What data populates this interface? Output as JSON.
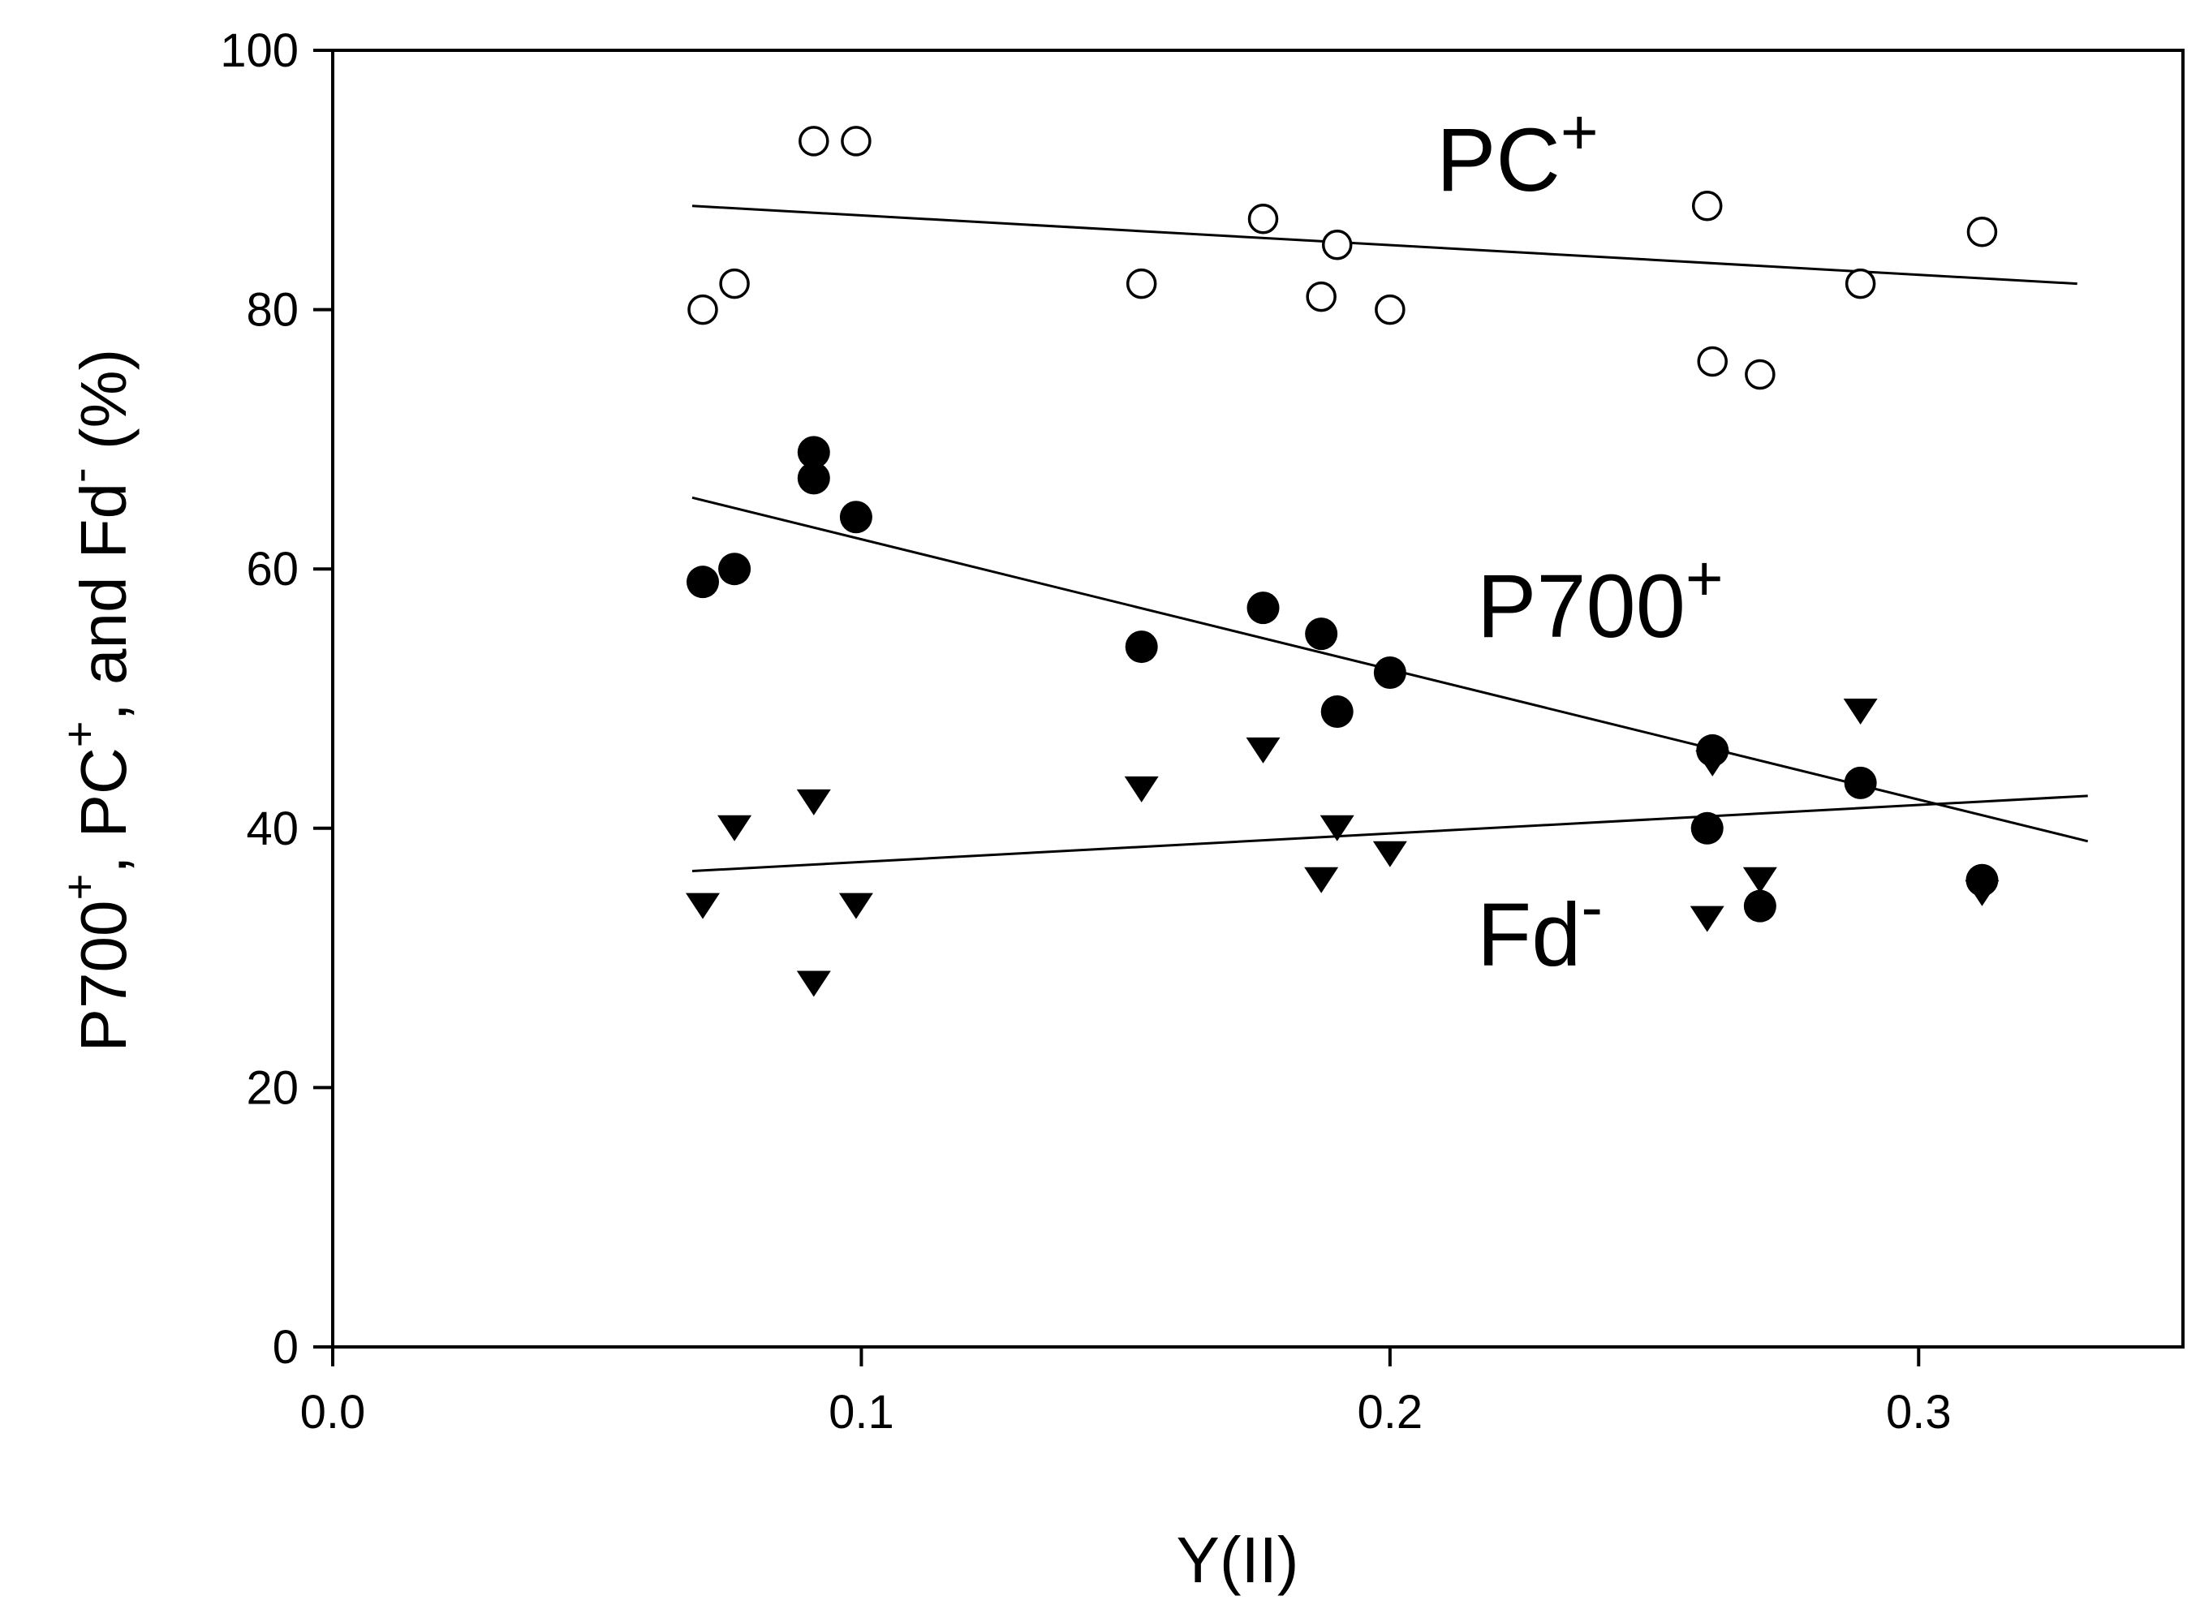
{
  "chart_data": {
    "type": "scatter",
    "title": "",
    "xlabel": "Y(II)",
    "ylabel": {
      "p700": "P700",
      "pc_pre": ", PC",
      "fd_pre": ", and Fd",
      "unit": " (%)",
      "plus": "+",
      "minus": "-"
    },
    "xlim": [
      0.0,
      0.35
    ],
    "ylim": [
      0,
      100
    ],
    "x_ticks": [
      "0.0",
      "0.1",
      "0.2",
      "0.3"
    ],
    "x_tick_values": [
      0.0,
      0.1,
      0.2,
      0.3
    ],
    "y_ticks": [
      "0",
      "20",
      "40",
      "60",
      "80",
      "100"
    ],
    "y_tick_values": [
      0,
      20,
      40,
      60,
      80,
      100
    ],
    "grid": false,
    "series": [
      {
        "name": "PC+",
        "label_text": "PC",
        "label_sup": "+",
        "marker": "open-circle",
        "color": "#000000",
        "points": [
          [
            0.07,
            80
          ],
          [
            0.076,
            82
          ],
          [
            0.091,
            93
          ],
          [
            0.099,
            93
          ],
          [
            0.153,
            82
          ],
          [
            0.176,
            87
          ],
          [
            0.187,
            81
          ],
          [
            0.19,
            85
          ],
          [
            0.2,
            80
          ],
          [
            0.26,
            88
          ],
          [
            0.261,
            76
          ],
          [
            0.27,
            75
          ],
          [
            0.289,
            82
          ],
          [
            0.312,
            86
          ]
        ],
        "fit": [
          [
            0.068,
            88
          ],
          [
            0.33,
            82
          ]
        ]
      },
      {
        "name": "P700+",
        "label_text": "P700",
        "label_sup": "+",
        "marker": "filled-circle",
        "color": "#000000",
        "points": [
          [
            0.07,
            59
          ],
          [
            0.076,
            60
          ],
          [
            0.091,
            69
          ],
          [
            0.091,
            67
          ],
          [
            0.099,
            64
          ],
          [
            0.153,
            54
          ],
          [
            0.176,
            57
          ],
          [
            0.187,
            55
          ],
          [
            0.19,
            49
          ],
          [
            0.2,
            52
          ],
          [
            0.26,
            40
          ],
          [
            0.261,
            46
          ],
          [
            0.27,
            34
          ],
          [
            0.289,
            43.5
          ],
          [
            0.312,
            36
          ]
        ],
        "fit": [
          [
            0.068,
            65.5
          ],
          [
            0.332,
            39
          ]
        ]
      },
      {
        "name": "Fd-",
        "label_text": "Fd",
        "label_sup": "-",
        "marker": "filled-triangle-down",
        "color": "#000000",
        "points": [
          [
            0.07,
            34
          ],
          [
            0.076,
            40
          ],
          [
            0.091,
            42
          ],
          [
            0.091,
            28
          ],
          [
            0.099,
            34
          ],
          [
            0.153,
            43
          ],
          [
            0.176,
            46
          ],
          [
            0.187,
            36
          ],
          [
            0.19,
            40
          ],
          [
            0.2,
            38
          ],
          [
            0.26,
            33
          ],
          [
            0.261,
            45
          ],
          [
            0.27,
            36
          ],
          [
            0.289,
            49
          ],
          [
            0.312,
            35
          ]
        ],
        "fit": [
          [
            0.068,
            36.7
          ],
          [
            0.332,
            42.5
          ]
        ]
      }
    ]
  }
}
